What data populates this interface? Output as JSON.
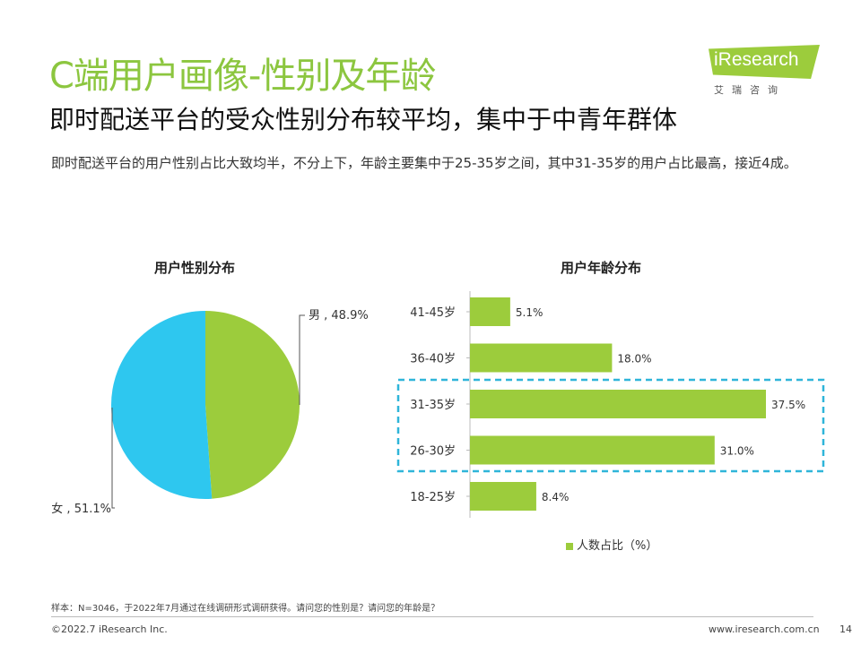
{
  "header": {
    "title": "C端用户画像-性别及年龄",
    "subtitle": "即时配送平台的受众性别分布较平均，集中于中青年群体",
    "description": "即时配送平台的用户性别占比大致均半，不分上下，年龄主要集中于25-35岁之间，其中31-35岁的用户占比最高，接近4成。"
  },
  "logo": {
    "word": "iResearch",
    "cn": "艾瑞咨询"
  },
  "colors": {
    "green": "#9ccc3c",
    "blue": "#2ec7ef",
    "accent_title": "#8cc63f",
    "dashed": "#2fb5d9"
  },
  "chart_data": [
    {
      "type": "pie",
      "title": "用户性别分布",
      "slices": [
        {
          "name": "男",
          "value": 48.9,
          "label": "男 , 48.9%",
          "color": "#9ccc3c"
        },
        {
          "name": "女",
          "value": 51.1,
          "label": "女 , 51.1%",
          "color": "#2ec7ef"
        }
      ]
    },
    {
      "type": "bar",
      "orientation": "horizontal",
      "title": "用户年龄分布",
      "categories": [
        "41-45岁",
        "36-40岁",
        "31-35岁",
        "26-30岁",
        "18-25岁"
      ],
      "series": [
        {
          "name": "人数占比（%）",
          "values": [
            5.1,
            18.0,
            37.5,
            31.0,
            8.4
          ],
          "labels": [
            "5.1%",
            "18.0%",
            "37.5%",
            "31.0%",
            "8.4%"
          ]
        }
      ],
      "highlight": [
        "31-35岁",
        "26-30岁"
      ],
      "legend": "bottom"
    }
  ],
  "footer": {
    "note": "样本：N=3046，于2022年7月通过在线调研形式调研获得。请问您的性别是？请问您的年龄是？",
    "copyright": "©2022.7 iResearch Inc.",
    "site": "www.iresearch.com.cn",
    "page": "14"
  }
}
